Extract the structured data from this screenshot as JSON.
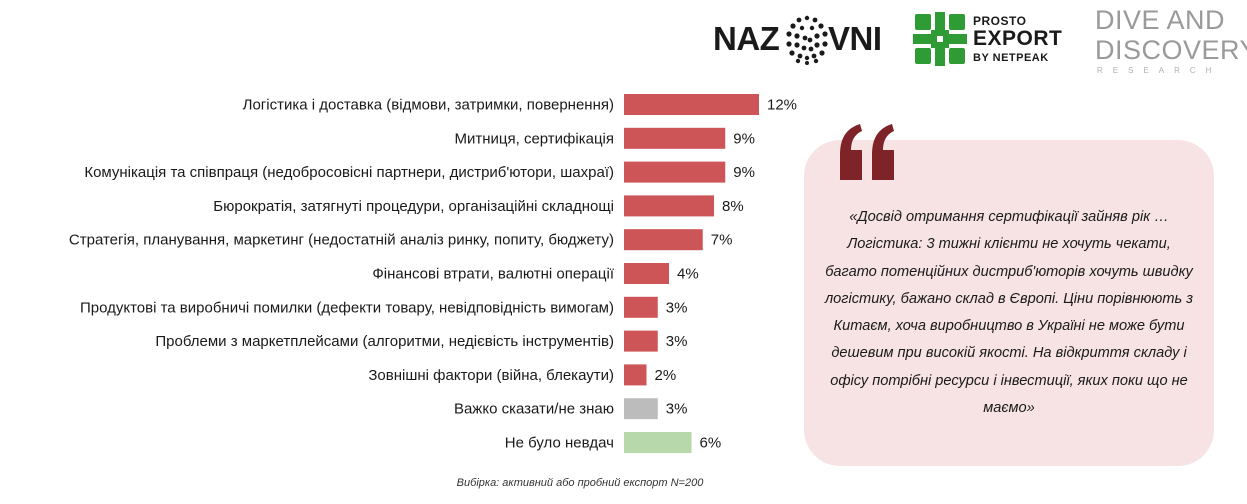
{
  "chart_data": {
    "type": "bar",
    "orientation": "horizontal",
    "categories": [
      "Логістика і доставка (відмови, затримки, повернення)",
      "Митниця, сертифікація",
      "Комунікація та співпраця (недобросовісні партнери, дистриб'ютори, шахраї)",
      "Бюрократія, затягнуті процедури, організаційні складнощі",
      "Стратегія, планування, маркетинг (недостатній аналіз ринку, попиту, бюджету)",
      "Фінансові втрати, валютні операції",
      "Продуктові та виробничі помилки (дефекти товару, невідповідність вимогам)",
      "Проблеми з маркетплейсами (алгоритми, недієвість інструментів)",
      "Зовнішні фактори (війна, блекаути)",
      "Важко сказати/не знаю",
      "Не було невдач"
    ],
    "values": [
      12,
      9,
      9,
      8,
      7,
      4,
      3,
      3,
      2,
      3,
      6
    ],
    "value_labels": [
      "12%",
      "9%",
      "9%",
      "8%",
      "7%",
      "4%",
      "3%",
      "3%",
      "2%",
      "3%",
      "6%"
    ],
    "colors": [
      "#cd5457",
      "#cd5457",
      "#cd5457",
      "#cd5457",
      "#cd5457",
      "#cd5457",
      "#cd5457",
      "#cd5457",
      "#cd5457",
      "#bcbcbc",
      "#b7d8ab"
    ],
    "unit": "%",
    "title": "",
    "xlabel": "",
    "ylabel": "",
    "grid": false,
    "legend": "none"
  },
  "note": "Вибірка: активний або пробний експорт N=200",
  "logos": {
    "nazovni": {
      "left": "NAZ",
      "right": "VNI"
    },
    "prosto_export": {
      "line1": "PROSTO",
      "line2": "EXPORT",
      "line3": "BY NETPEAK",
      "accent": "#2e9b35"
    },
    "dive": {
      "line1": "DIVE AND",
      "line2": "DISCOVERY",
      "line3": "RESEARCH"
    }
  },
  "quote": {
    "text": "«Досвід отримання сертифікації зайняв рік … Логістика: 3 тижні клієнти не хочуть чекати, багато потенційних дистриб'юторів хочуть швидку логістику, бажано склад в Європі. Ціни порівнюють з Китаєм, хоча виробництво в Україні не може бути дешевим при високій якості. На відкриття складу і офісу потрібні ресурси і інвестиції, яких поки що не маємо»",
    "mark_color": "#7e2327",
    "box_color": "#f7e3e3"
  }
}
